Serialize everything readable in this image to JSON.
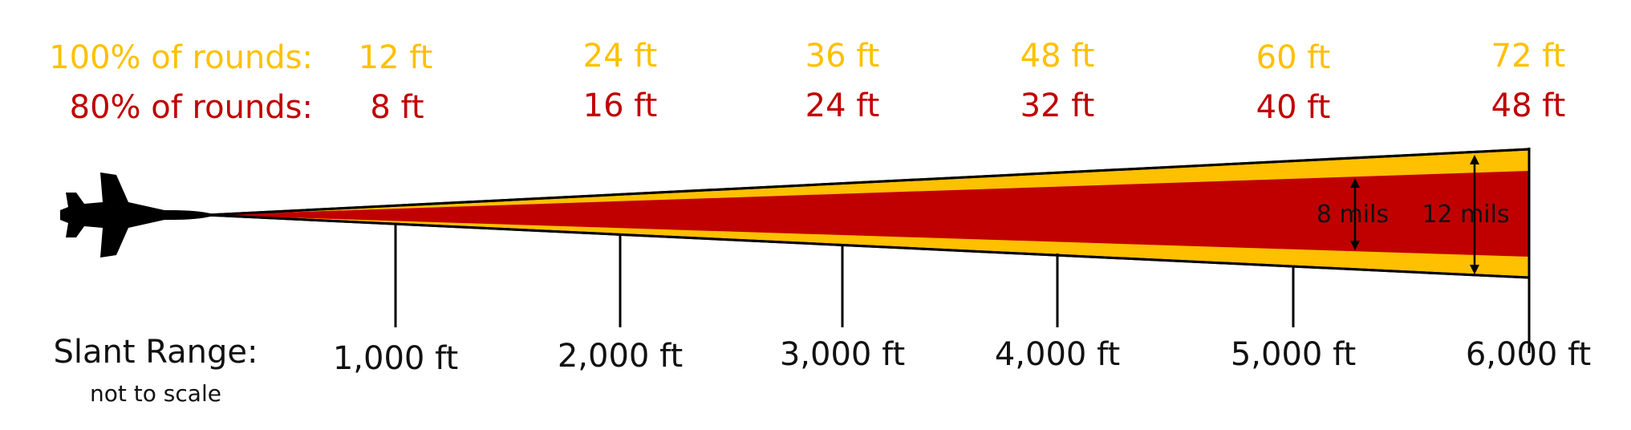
{
  "rows": {
    "r100": {
      "label": "100% of rounds:",
      "values": [
        "12 ft",
        "24 ft",
        "36 ft",
        "48 ft",
        "60 ft",
        "72 ft"
      ]
    },
    "r80": {
      "label": "80% of rounds:",
      "values": [
        "8 ft",
        "16 ft",
        "24 ft",
        "32 ft",
        "40 ft",
        "48 ft"
      ]
    }
  },
  "axis": {
    "label": "Slant Range:",
    "note": "not to scale",
    "ticks": [
      "1,000 ft",
      "2,000 ft",
      "3,000 ft",
      "4,000 ft",
      "5,000 ft",
      "6,000 ft"
    ]
  },
  "mils": {
    "inner": "8 mils",
    "outer": "12 mils"
  },
  "colors": {
    "outer_cone": "#FFC000",
    "inner_cone": "#C00000",
    "row100_text": "#FFC000",
    "row80_text": "#C00000",
    "outline": "#000000"
  },
  "icon": "fighter-jet-icon"
}
